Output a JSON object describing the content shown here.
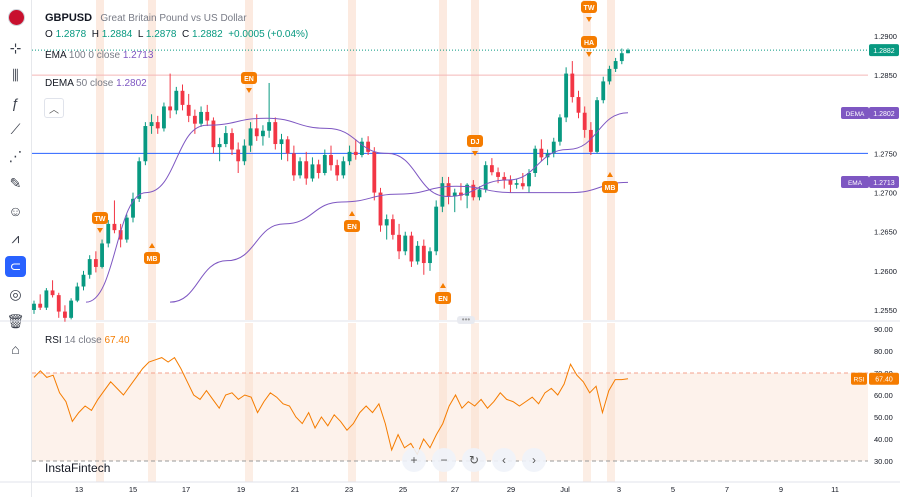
{
  "header": {
    "symbol": "GBPUSD",
    "description": "Great Britain Pound vs US Dollar",
    "o_label": "O",
    "o": "1.2878",
    "h_label": "H",
    "h": "1.2884",
    "l_label": "L",
    "l": "1.2878",
    "c_label": "C",
    "c": "1.2882",
    "change": "+0.0005 (+0.04%)"
  },
  "indicators": {
    "ema": {
      "name": "EMA",
      "params": "100  0  close",
      "value": "1.2713",
      "color": "#7e57c2"
    },
    "dema": {
      "name": "DEMA",
      "params": "50  close",
      "value": "1.2802",
      "color": "#7e57c2"
    },
    "rsi": {
      "name": "RSI",
      "params": "14  close",
      "value": "67.40",
      "color": "#f57c00"
    }
  },
  "brand": "InstaFintech",
  "toolbar_icons": [
    "flag-icon",
    "crosshair-icon",
    "candles-icon",
    "fx-indicator-icon",
    "drawing-icon",
    "brush-icon",
    "pattern-icon",
    "emoji-icon",
    "measure-icon",
    "magnet-icon",
    "eye-off-icon",
    "trash-icon",
    "lock-icon"
  ],
  "colors": {
    "up": "#089981",
    "down": "#f23645",
    "rsi": "#f57c00",
    "ema": "#7e57c2",
    "event_band": "#f9d9c6",
    "event_marker": "#f57c00",
    "price_line": "#089981",
    "hline_red": "#f4b7b7",
    "hline_blue": "#2962ff"
  },
  "chart_data": {
    "type": "candlestick",
    "symbol": "GBPUSD",
    "price_axis_ticks": [
      "1.2900",
      "1.2850",
      "1.2800",
      "1.2750",
      "1.2700",
      "1.2650",
      "1.2600",
      "1.2550"
    ],
    "price_range": [
      1.2534,
      1.292
    ],
    "time_axis_ticks": [
      "13",
      "15",
      "17",
      "19",
      "21",
      "23",
      "25",
      "27",
      "29",
      "Jul",
      "3",
      "5",
      "7",
      "9",
      "11",
      "13",
      "15",
      "17",
      "19",
      "21"
    ],
    "last_price": "1.2882",
    "horizontal_lines": [
      {
        "price": 1.285
      },
      {
        "price": 1.275
      }
    ],
    "candles": [
      [
        1.255,
        1.2562,
        1.2545,
        1.2558
      ],
      [
        1.2558,
        1.257,
        1.255,
        1.2553
      ],
      [
        1.2553,
        1.2578,
        1.255,
        1.2575
      ],
      [
        1.2575,
        1.2588,
        1.2566,
        1.2569
      ],
      [
        1.2569,
        1.2572,
        1.254,
        1.2548
      ],
      [
        1.2548,
        1.2556,
        1.2535,
        1.254
      ],
      [
        1.254,
        1.2565,
        1.2538,
        1.2562
      ],
      [
        1.2562,
        1.2585,
        1.256,
        1.258
      ],
      [
        1.258,
        1.26,
        1.2575,
        1.2595
      ],
      [
        1.2595,
        1.262,
        1.259,
        1.2615
      ],
      [
        1.2615,
        1.2625,
        1.2598,
        1.2605
      ],
      [
        1.2605,
        1.264,
        1.2603,
        1.2635
      ],
      [
        1.2635,
        1.2665,
        1.263,
        1.266
      ],
      [
        1.266,
        1.269,
        1.2648,
        1.2652
      ],
      [
        1.2652,
        1.266,
        1.263,
        1.264
      ],
      [
        1.264,
        1.2672,
        1.2636,
        1.2668
      ],
      [
        1.2668,
        1.27,
        1.2662,
        1.2692
      ],
      [
        1.2692,
        1.2745,
        1.2688,
        1.274
      ],
      [
        1.274,
        1.279,
        1.2735,
        1.2785
      ],
      [
        1.2785,
        1.28,
        1.2775,
        1.279
      ],
      [
        1.279,
        1.2798,
        1.2775,
        1.2782
      ],
      [
        1.2782,
        1.2815,
        1.2778,
        1.281
      ],
      [
        1.281,
        1.2852,
        1.2795,
        1.2805
      ],
      [
        1.2805,
        1.2835,
        1.28,
        1.283
      ],
      [
        1.283,
        1.2838,
        1.2805,
        1.2812
      ],
      [
        1.2812,
        1.2826,
        1.279,
        1.2798
      ],
      [
        1.2798,
        1.2806,
        1.2775,
        1.2788
      ],
      [
        1.2788,
        1.281,
        1.2784,
        1.2803
      ],
      [
        1.2803,
        1.2812,
        1.2785,
        1.2792
      ],
      [
        1.2792,
        1.2796,
        1.275,
        1.2758
      ],
      [
        1.2758,
        1.277,
        1.274,
        1.2762
      ],
      [
        1.2762,
        1.2785,
        1.2758,
        1.2776
      ],
      [
        1.2776,
        1.2782,
        1.2748,
        1.2755
      ],
      [
        1.2755,
        1.2764,
        1.2725,
        1.274
      ],
      [
        1.274,
        1.2768,
        1.2735,
        1.276
      ],
      [
        1.276,
        1.279,
        1.2752,
        1.2782
      ],
      [
        1.2782,
        1.28,
        1.2766,
        1.2772
      ],
      [
        1.2772,
        1.2786,
        1.276,
        1.2779
      ],
      [
        1.2779,
        1.284,
        1.277,
        1.279
      ],
      [
        1.279,
        1.2796,
        1.2755,
        1.2762
      ],
      [
        1.2762,
        1.2775,
        1.2742,
        1.2768
      ],
      [
        1.2768,
        1.2772,
        1.274,
        1.275
      ],
      [
        1.275,
        1.276,
        1.2715,
        1.2722
      ],
      [
        1.2722,
        1.2745,
        1.2718,
        1.274
      ],
      [
        1.274,
        1.2752,
        1.271,
        1.2718
      ],
      [
        1.2718,
        1.2745,
        1.2714,
        1.2736
      ],
      [
        1.2736,
        1.2742,
        1.2718,
        1.2725
      ],
      [
        1.2725,
        1.2755,
        1.2722,
        1.2748
      ],
      [
        1.2748,
        1.276,
        1.2728,
        1.2735
      ],
      [
        1.2735,
        1.2742,
        1.2715,
        1.2722
      ],
      [
        1.2722,
        1.2746,
        1.2718,
        1.274
      ],
      [
        1.274,
        1.276,
        1.2735,
        1.2752
      ],
      [
        1.2752,
        1.2768,
        1.2742,
        1.2748
      ],
      [
        1.2748,
        1.277,
        1.2745,
        1.2765
      ],
      [
        1.2765,
        1.2772,
        1.2748,
        1.2752
      ],
      [
        1.2752,
        1.2758,
        1.269,
        1.27
      ],
      [
        1.27,
        1.2706,
        1.265,
        1.2658
      ],
      [
        1.2658,
        1.2672,
        1.264,
        1.2666
      ],
      [
        1.2666,
        1.2672,
        1.264,
        1.2646
      ],
      [
        1.2646,
        1.266,
        1.2615,
        1.2625
      ],
      [
        1.2625,
        1.265,
        1.262,
        1.2645
      ],
      [
        1.2645,
        1.265,
        1.2605,
        1.2612
      ],
      [
        1.2612,
        1.2638,
        1.2608,
        1.2632
      ],
      [
        1.2632,
        1.264,
        1.2595,
        1.261
      ],
      [
        1.261,
        1.263,
        1.26,
        1.2625
      ],
      [
        1.2625,
        1.269,
        1.262,
        1.2682
      ],
      [
        1.2682,
        1.272,
        1.2675,
        1.2712
      ],
      [
        1.2712,
        1.272,
        1.2685,
        1.2695
      ],
      [
        1.2695,
        1.2705,
        1.2675,
        1.27
      ],
      [
        1.27,
        1.2712,
        1.269,
        1.2696
      ],
      [
        1.2696,
        1.2712,
        1.268,
        1.271
      ],
      [
        1.271,
        1.2716,
        1.269,
        1.2694
      ],
      [
        1.2694,
        1.2708,
        1.269,
        1.2704
      ],
      [
        1.2704,
        1.274,
        1.27,
        1.2735
      ],
      [
        1.2735,
        1.2744,
        1.2722,
        1.2726
      ],
      [
        1.2726,
        1.2732,
        1.2712,
        1.272
      ],
      [
        1.272,
        1.2726,
        1.2705,
        1.2716
      ],
      [
        1.2716,
        1.2722,
        1.27,
        1.271
      ],
      [
        1.271,
        1.2718,
        1.2705,
        1.2712
      ],
      [
        1.2712,
        1.2725,
        1.2704,
        1.2708
      ],
      [
        1.2708,
        1.273,
        1.27,
        1.2725
      ],
      [
        1.2725,
        1.276,
        1.272,
        1.2756
      ],
      [
        1.2756,
        1.2768,
        1.274,
        1.2745
      ],
      [
        1.2745,
        1.2755,
        1.2735,
        1.275
      ],
      [
        1.275,
        1.277,
        1.2745,
        1.2765
      ],
      [
        1.2765,
        1.28,
        1.276,
        1.2796
      ],
      [
        1.2796,
        1.286,
        1.279,
        1.2852
      ],
      [
        1.2852,
        1.2868,
        1.2815,
        1.2822
      ],
      [
        1.2822,
        1.283,
        1.2795,
        1.2802
      ],
      [
        1.2802,
        1.281,
        1.277,
        1.278
      ],
      [
        1.278,
        1.279,
        1.2748,
        1.2752
      ],
      [
        1.2752,
        1.2822,
        1.275,
        1.2818
      ],
      [
        1.2818,
        1.2848,
        1.2814,
        1.2842
      ],
      [
        1.2842,
        1.2862,
        1.2838,
        1.2858
      ],
      [
        1.2858,
        1.2872,
        1.2854,
        1.2868
      ],
      [
        1.2868,
        1.2884,
        1.2864,
        1.2878
      ],
      [
        1.2878,
        1.2884,
        1.2878,
        1.2882
      ]
    ],
    "ema_100": [
      1.256,
      1.2613,
      1.266,
      1.2688,
      1.2698,
      1.2708,
      1.27,
      1.27,
      1.2713
    ],
    "dema_50": [
      1.256,
      1.27,
      1.2786,
      1.2795,
      1.2782,
      1.275,
      1.2695,
      1.2716,
      1.2755,
      1.2802
    ],
    "events": [
      {
        "label": "TW",
        "direction": "down"
      },
      {
        "label": "MB",
        "direction": "up"
      },
      {
        "label": "EN",
        "direction": "down"
      },
      {
        "label": "EN",
        "direction": "up"
      },
      {
        "label": "EN",
        "direction": "up"
      },
      {
        "label": "DJ",
        "direction": "down"
      },
      {
        "label": "TW",
        "direction": "down"
      },
      {
        "label": "HA",
        "direction": "down"
      },
      {
        "label": "MB",
        "direction": "up"
      }
    ],
    "price_labels": [
      {
        "label": "",
        "value": "1.2882",
        "color": "#089981"
      },
      {
        "label": "DEMA",
        "value": "1.2802",
        "color": "#7e57c2"
      },
      {
        "label": "EMA",
        "value": "1.2713",
        "color": "#7e57c2"
      }
    ],
    "rsi": {
      "axis_ticks": [
        "90.00",
        "80.00",
        "70.00",
        "60.00",
        "50.00",
        "40.00",
        "30.00"
      ],
      "range": [
        27,
        91
      ],
      "overbought": 70,
      "oversold": 30,
      "last_label": "RSI",
      "last_value": "67.40",
      "values": [
        68,
        71,
        68,
        69,
        61,
        57,
        48,
        52,
        55,
        53,
        58,
        62,
        66,
        63,
        60,
        64,
        68,
        72,
        75,
        76,
        77,
        75,
        77,
        72,
        66,
        60,
        58,
        62,
        58,
        54,
        60,
        61,
        58,
        60,
        59,
        52,
        57,
        61,
        59,
        56,
        55,
        50,
        47,
        52,
        45,
        50,
        46,
        51,
        48,
        44,
        47,
        52,
        55,
        52,
        56,
        47,
        35,
        42,
        36,
        38,
        33,
        40,
        36,
        42,
        47,
        55,
        60,
        54,
        57,
        55,
        58,
        54,
        57,
        61,
        58,
        57,
        55,
        57,
        59,
        56,
        61,
        63,
        60,
        65,
        74,
        69,
        66,
        61,
        64,
        52,
        62,
        67,
        67,
        67.4
      ]
    }
  }
}
